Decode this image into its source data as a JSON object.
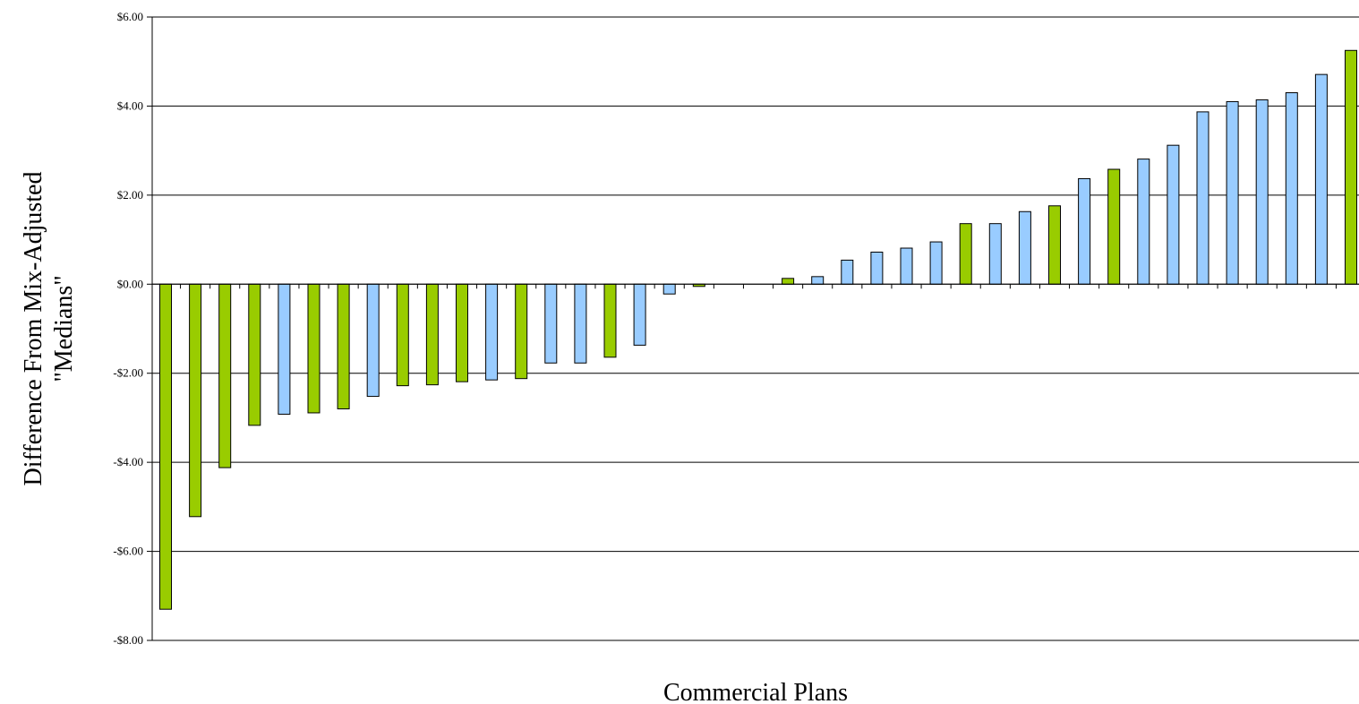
{
  "chart_data": {
    "type": "bar",
    "title": "",
    "xlabel": "Commercial Plans",
    "ylabel_lines": [
      "Difference From Mix-Adjusted",
      "\"Medians\""
    ],
    "ylim": [
      -8,
      6
    ],
    "yticks": [
      6,
      4,
      2,
      0,
      -2,
      -4,
      -6,
      -8
    ],
    "ytick_labels": [
      "$6.00",
      "$4.00",
      "$2.00",
      "$0.00",
      "-$2.00",
      "-$4.00",
      "-$6.00",
      "-$8.00"
    ],
    "grid": true,
    "legend": "none",
    "colors": {
      "green": "#99cc00",
      "blue": "#99ccff",
      "outline": "#000000"
    },
    "bars": [
      {
        "value": -7.3,
        "color": "green"
      },
      {
        "value": -5.22,
        "color": "green"
      },
      {
        "value": -4.12,
        "color": "green"
      },
      {
        "value": -3.17,
        "color": "green"
      },
      {
        "value": -2.92,
        "color": "blue"
      },
      {
        "value": -2.89,
        "color": "green"
      },
      {
        "value": -2.8,
        "color": "green"
      },
      {
        "value": -2.52,
        "color": "blue"
      },
      {
        "value": -2.28,
        "color": "green"
      },
      {
        "value": -2.26,
        "color": "green"
      },
      {
        "value": -2.19,
        "color": "green"
      },
      {
        "value": -2.15,
        "color": "blue"
      },
      {
        "value": -2.12,
        "color": "green"
      },
      {
        "value": -1.77,
        "color": "blue"
      },
      {
        "value": -1.77,
        "color": "blue"
      },
      {
        "value": -1.64,
        "color": "green"
      },
      {
        "value": -1.37,
        "color": "blue"
      },
      {
        "value": -0.22,
        "color": "blue"
      },
      {
        "value": -0.05,
        "color": "green"
      },
      {
        "value": 0.0,
        "color": "blue"
      },
      {
        "value": 0.0,
        "color": "blue"
      },
      {
        "value": 0.13,
        "color": "green"
      },
      {
        "value": 0.17,
        "color": "blue"
      },
      {
        "value": 0.54,
        "color": "blue"
      },
      {
        "value": 0.72,
        "color": "blue"
      },
      {
        "value": 0.81,
        "color": "blue"
      },
      {
        "value": 0.95,
        "color": "blue"
      },
      {
        "value": 1.36,
        "color": "green"
      },
      {
        "value": 1.36,
        "color": "blue"
      },
      {
        "value": 1.63,
        "color": "blue"
      },
      {
        "value": 1.76,
        "color": "green"
      },
      {
        "value": 2.37,
        "color": "blue"
      },
      {
        "value": 2.58,
        "color": "green"
      },
      {
        "value": 2.81,
        "color": "blue"
      },
      {
        "value": 3.12,
        "color": "blue"
      },
      {
        "value": 3.87,
        "color": "blue"
      },
      {
        "value": 4.1,
        "color": "blue"
      },
      {
        "value": 4.14,
        "color": "blue"
      },
      {
        "value": 4.3,
        "color": "blue"
      },
      {
        "value": 4.71,
        "color": "blue"
      },
      {
        "value": 5.25,
        "color": "green"
      }
    ]
  }
}
